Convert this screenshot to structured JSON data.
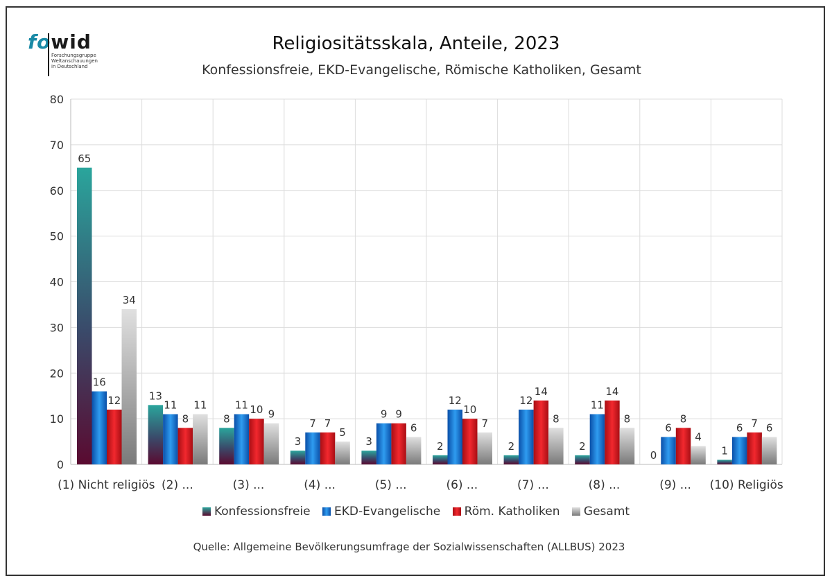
{
  "logo": {
    "brand_fo": "fo",
    "brand_wid": "wid",
    "sub_lines": [
      "Forschungsgruppe",
      "Weltanschauungen",
      "in Deutschland"
    ]
  },
  "chart_data": {
    "type": "bar",
    "title": "Religiositätsskala, Anteile, 2023",
    "subtitle": "Konfessionsfreie, EKD-Evangelische, Römische Katholiken, Gesamt",
    "source": "Quelle: Allgemeine Bevölkerungsumfrage der Sozialwissenschaften (ALLBUS) 2023",
    "categories": [
      "(1) Nicht religiös",
      "(2) ...",
      "(3) ...",
      "(4) ...",
      "(5) ...",
      "(6) ...",
      "(7) ...",
      "(8) ...",
      "(9) ...",
      "(10) Religiös"
    ],
    "series": [
      {
        "name": "Konfessionsfreie",
        "values": [
          65,
          13,
          8,
          3,
          3,
          2,
          2,
          2,
          0,
          1
        ],
        "color": "#2a9a96"
      },
      {
        "name": "EKD-Evangelische",
        "values": [
          16,
          11,
          11,
          7,
          9,
          12,
          12,
          11,
          6,
          6
        ],
        "color": "#1e7fd8"
      },
      {
        "name": "Röm. Katholiken",
        "values": [
          12,
          8,
          10,
          7,
          9,
          10,
          14,
          14,
          8,
          7
        ],
        "color": "#e0242a"
      },
      {
        "name": "Gesamt",
        "values": [
          34,
          11,
          9,
          5,
          6,
          7,
          8,
          8,
          4,
          6
        ],
        "color": "#bdbdbd"
      }
    ],
    "yticks": [
      0,
      10,
      20,
      30,
      40,
      50,
      60,
      70,
      80
    ],
    "ylim": [
      0,
      80
    ],
    "grid": true,
    "legend_position": "bottom"
  }
}
